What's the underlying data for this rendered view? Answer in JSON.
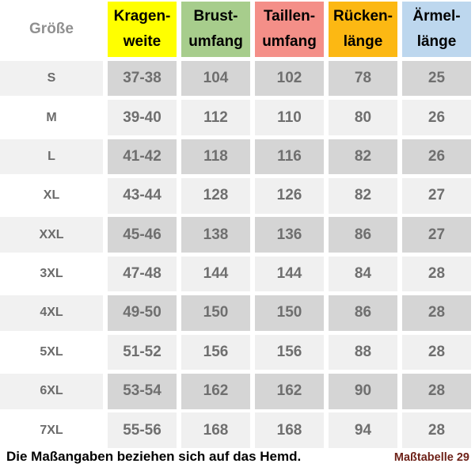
{
  "chart_data": {
    "type": "table",
    "title": "Maßtabelle 29",
    "columns": [
      "Größe",
      "Kragenweite",
      "Brustumfang",
      "Taillenumfang",
      "Rückenlänge",
      "Ärmellänge"
    ],
    "rows": [
      [
        "S",
        "37-38",
        "104",
        "102",
        "78",
        "25"
      ],
      [
        "M",
        "39-40",
        "112",
        "110",
        "80",
        "26"
      ],
      [
        "L",
        "41-42",
        "118",
        "116",
        "82",
        "26"
      ],
      [
        "XL",
        "43-44",
        "128",
        "126",
        "82",
        "27"
      ],
      [
        "XXL",
        "45-46",
        "138",
        "136",
        "86",
        "27"
      ],
      [
        "3XL",
        "47-48",
        "144",
        "144",
        "84",
        "28"
      ],
      [
        "4XL",
        "49-50",
        "150",
        "150",
        "86",
        "28"
      ],
      [
        "5XL",
        "51-52",
        "156",
        "156",
        "88",
        "28"
      ],
      [
        "6XL",
        "53-54",
        "162",
        "162",
        "90",
        "28"
      ],
      [
        "7XL",
        "55-56",
        "168",
        "168",
        "94",
        "28"
      ]
    ],
    "note": "Die Maßangaben beziehen sich auf das Hemd."
  },
  "table": {
    "size_header": "Größe",
    "columns": [
      {
        "id": "kragenweite",
        "line1": "Kragen-",
        "line2": "weite",
        "bg": "#FFFF00"
      },
      {
        "id": "brustumfang",
        "line1": "Brust-",
        "line2": "umfang",
        "bg": "#A7CD8C"
      },
      {
        "id": "taillenumfang",
        "line1": "Taillen-",
        "line2": "umfang",
        "bg": "#F48F88"
      },
      {
        "id": "rueckenlaenge",
        "line1": "Rücken-",
        "line2": "länge",
        "bg": "#FCB813"
      },
      {
        "id": "aermellaenge",
        "line1": "Ärmel-",
        "line2": "länge",
        "bg": "#BDD7EE"
      }
    ],
    "rows": [
      {
        "size": "S",
        "values": [
          "37-38",
          "104",
          "102",
          "78",
          "25"
        ]
      },
      {
        "size": "M",
        "values": [
          "39-40",
          "112",
          "110",
          "80",
          "26"
        ]
      },
      {
        "size": "L",
        "values": [
          "41-42",
          "118",
          "116",
          "82",
          "26"
        ]
      },
      {
        "size": "XL",
        "values": [
          "43-44",
          "128",
          "126",
          "82",
          "27"
        ]
      },
      {
        "size": "XXL",
        "values": [
          "45-46",
          "138",
          "136",
          "86",
          "27"
        ]
      },
      {
        "size": "3XL",
        "values": [
          "47-48",
          "144",
          "144",
          "84",
          "28"
        ]
      },
      {
        "size": "4XL",
        "values": [
          "49-50",
          "150",
          "150",
          "86",
          "28"
        ]
      },
      {
        "size": "5XL",
        "values": [
          "51-52",
          "156",
          "156",
          "88",
          "28"
        ]
      },
      {
        "size": "6XL",
        "values": [
          "53-54",
          "162",
          "162",
          "90",
          "28"
        ]
      },
      {
        "size": "7XL",
        "values": [
          "55-56",
          "168",
          "168",
          "94",
          "28"
        ]
      }
    ],
    "colors": {
      "odd_size_bg": "#F1F1F1",
      "odd_value_bg": "#D5D5D5",
      "even_size_bg": "#FFFFFF",
      "even_value_bg": "#F0F0F0",
      "size_text": "#6B6B6B",
      "value_text": "#6F6F6F",
      "size_header_text": "#909090"
    }
  },
  "footer": {
    "note": "Die Maßangaben beziehen sich auf das Hemd.",
    "reference": "Maßtabelle 29",
    "reference_color": "#6E2219"
  }
}
